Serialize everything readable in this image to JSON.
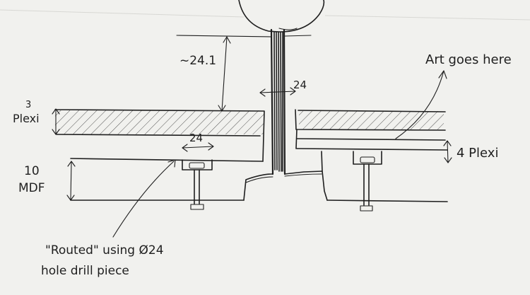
{
  "labels": {
    "top_clearance": "~24.1",
    "shaft_width": "24",
    "plexi_thickness": "3",
    "plexi_label": "Plexi",
    "counterbore_width": "24",
    "mdf_thickness": "10",
    "mdf_label": "MDF",
    "art_note": "Art goes here",
    "right_plexi": "4 Plexi",
    "routed_note_line1": "\"Routed\" using Ø24",
    "routed_note_line2": "hole drill piece"
  },
  "ink_color": "#1f1f1f",
  "paper_color": "#f1f1ee",
  "hatch_color": "#555555"
}
